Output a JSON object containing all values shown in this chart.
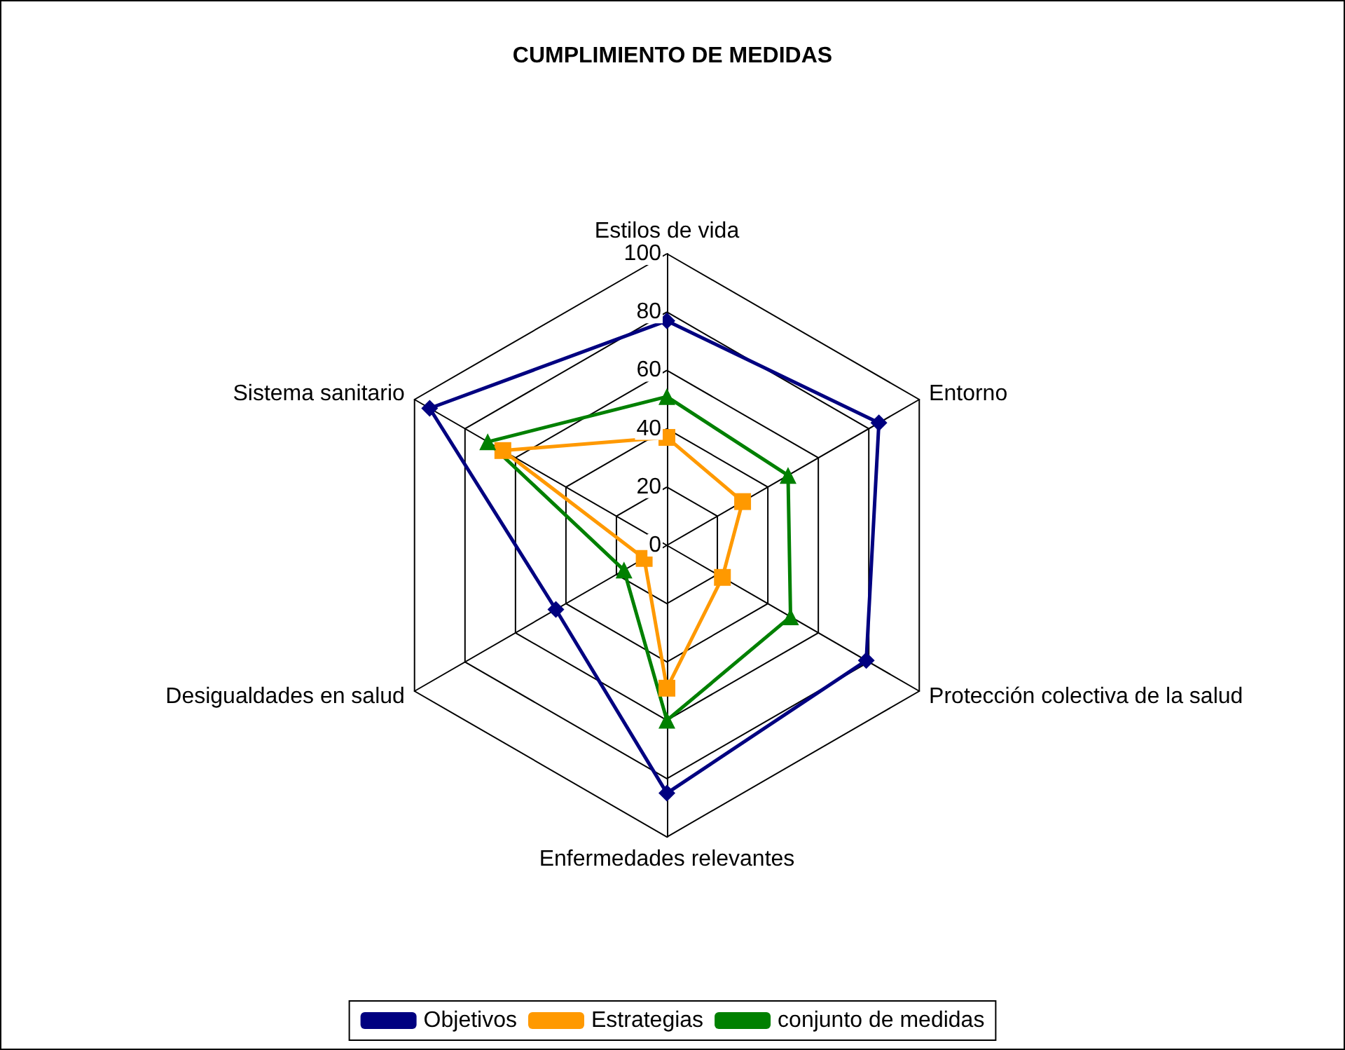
{
  "chart_data": {
    "type": "radar",
    "title": "CUMPLIMIENTO DE MEDIDAS",
    "categories": [
      "Estilos de vida",
      "Entorno",
      "Protección colectiva de la salud",
      "Enfermedades relevantes",
      "Desigualdades en salud",
      "Sistema sanitario"
    ],
    "series": [
      {
        "name": "Objetivos",
        "color": "#000080",
        "marker": "diamond",
        "values": [
          77,
          84,
          79,
          85,
          44,
          94
        ]
      },
      {
        "name": "Estrategias",
        "color": "#ff9900",
        "marker": "square",
        "values": [
          37,
          30,
          22,
          49,
          9,
          65
        ]
      },
      {
        "name": "conjunto de medidas",
        "color": "#008000",
        "marker": "triangle",
        "values": [
          51,
          48,
          49,
          60,
          17,
          71
        ]
      }
    ],
    "ylim": [
      0,
      100
    ],
    "yticks": [
      0,
      20,
      40,
      60,
      80,
      100
    ],
    "legend": "bottom",
    "grid": true
  }
}
